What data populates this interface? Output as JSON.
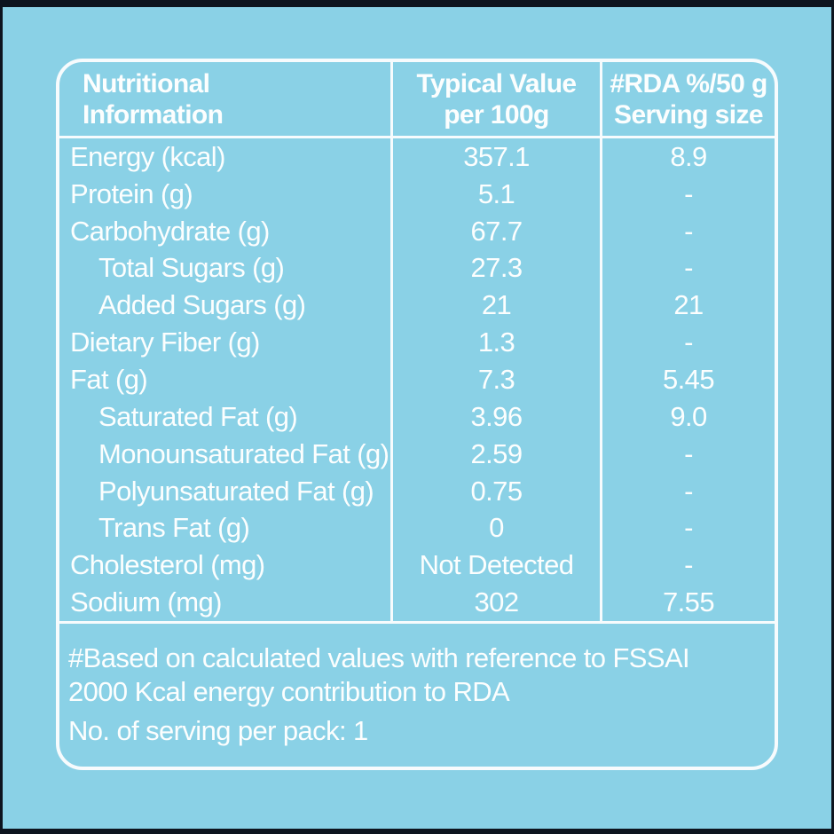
{
  "colors": {
    "background": "#8AD1E6",
    "frame": "#0D141E",
    "lines": "#F7FBFD",
    "text": "#FCFEFE"
  },
  "table": {
    "header": {
      "col1_line1": "Nutritional",
      "col1_line2": "Information",
      "col2_line1": "Typical Value",
      "col2_line2": "per 100g",
      "col3_line1": "#RDA %/50 g",
      "col3_line2": "Serving size"
    },
    "rows": [
      {
        "label": "Energy (kcal)",
        "value": "357.1",
        "rda": "8.9"
      },
      {
        "label": "Protein (g)",
        "value": "5.1",
        "rda": "-"
      },
      {
        "label": "Carbohydrate (g)",
        "value": "67.7",
        "rda": "-"
      },
      {
        "label": "Total Sugars (g)",
        "value": "27.3",
        "rda": "-"
      },
      {
        "label": "Added Sugars (g)",
        "value": "21",
        "rda": "21"
      },
      {
        "label": "Dietary Fiber (g)",
        "value": "1.3",
        "rda": "-"
      },
      {
        "label": "Fat (g)",
        "value": "7.3",
        "rda": "5.45"
      },
      {
        "label": "Saturated Fat (g)",
        "value": "3.96",
        "rda": "9.0"
      },
      {
        "label": "Monounsaturated Fat (g)",
        "value": "2.59",
        "rda": "-"
      },
      {
        "label": "Polyunsaturated Fat (g)",
        "value": "0.75",
        "rda": "-"
      },
      {
        "label": "Trans Fat (g)",
        "value": "0",
        "rda": "-"
      },
      {
        "label": "Cholesterol (mg)",
        "value": "Not Detected",
        "rda": "-"
      },
      {
        "label": "Sodium (mg)",
        "value": "302",
        "rda": "7.55"
      }
    ],
    "footer": {
      "note_line1": "#Based on calculated values with reference to FSSAI",
      "note_line2": "2000 Kcal energy contribution to RDA",
      "serving_line": "No. of serving per pack: 1"
    }
  }
}
